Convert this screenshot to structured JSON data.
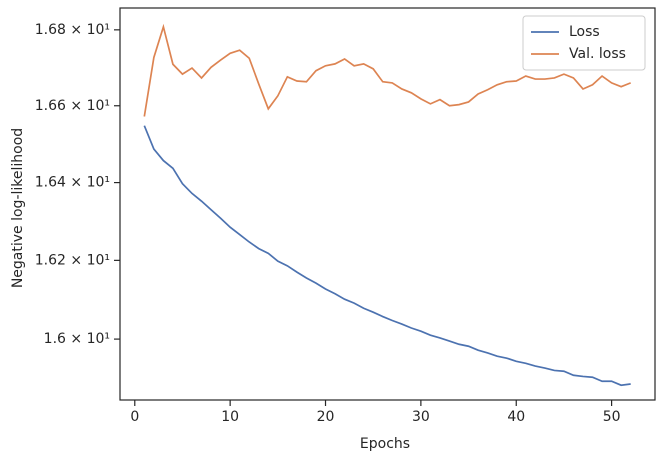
{
  "chart_data": {
    "type": "line",
    "x_label": "Epochs",
    "y_label": "Negative log-likelihood",
    "x": [
      1,
      2,
      3,
      4,
      5,
      6,
      7,
      8,
      9,
      10,
      11,
      12,
      13,
      14,
      15,
      16,
      17,
      18,
      19,
      20,
      21,
      22,
      23,
      24,
      25,
      26,
      27,
      28,
      29,
      30,
      31,
      32,
      33,
      34,
      35,
      36,
      37,
      38,
      39,
      40,
      41,
      42,
      43,
      44,
      45,
      46,
      47,
      48,
      49,
      50,
      51,
      52
    ],
    "series": [
      {
        "name": "Loss",
        "color": "#4c72b0",
        "values": [
          16.548,
          16.487,
          16.457,
          16.437,
          16.397,
          16.372,
          16.352,
          16.33,
          16.308,
          16.285,
          16.266,
          16.247,
          16.23,
          16.218,
          16.198,
          16.186,
          16.17,
          16.155,
          16.142,
          16.127,
          16.115,
          16.101,
          16.091,
          16.078,
          16.068,
          16.057,
          16.047,
          16.038,
          16.028,
          16.02,
          16.01,
          16.003,
          15.995,
          15.987,
          15.982,
          15.972,
          15.965,
          15.957,
          15.952,
          15.944,
          15.939,
          15.932,
          15.927,
          15.921,
          15.919,
          15.909,
          15.906,
          15.904,
          15.894,
          15.894,
          15.884,
          15.887
        ]
      },
      {
        "name": "Val. loss",
        "color": "#dd8452",
        "values": [
          16.572,
          16.727,
          16.808,
          16.709,
          16.683,
          16.699,
          16.673,
          16.701,
          16.72,
          16.738,
          16.746,
          16.725,
          16.657,
          16.592,
          16.626,
          16.676,
          16.665,
          16.663,
          16.692,
          16.705,
          16.71,
          16.723,
          16.705,
          16.71,
          16.697,
          16.663,
          16.66,
          16.644,
          16.634,
          16.618,
          16.605,
          16.616,
          16.6,
          16.603,
          16.61,
          16.631,
          16.642,
          16.655,
          16.663,
          16.665,
          16.678,
          16.67,
          16.67,
          16.673,
          16.683,
          16.673,
          16.644,
          16.655,
          16.678,
          16.66,
          16.65,
          16.66
        ]
      }
    ],
    "xlim": [
      -1.55,
      54.55
    ],
    "xticks": [
      0,
      10,
      20,
      30,
      40,
      50
    ],
    "ylim": [
      15.847,
      16.858
    ],
    "y_scale": "log",
    "yticks": [
      {
        "value": 16.0,
        "label": "1.6 × 10¹"
      },
      {
        "value": 16.2,
        "label": "1.62 × 10¹"
      },
      {
        "value": 16.4,
        "label": "1.64 × 10¹"
      },
      {
        "value": 16.6,
        "label": "1.66 × 10¹"
      },
      {
        "value": 16.8,
        "label": "1.68 × 10¹"
      }
    ],
    "legend": "upper right"
  }
}
